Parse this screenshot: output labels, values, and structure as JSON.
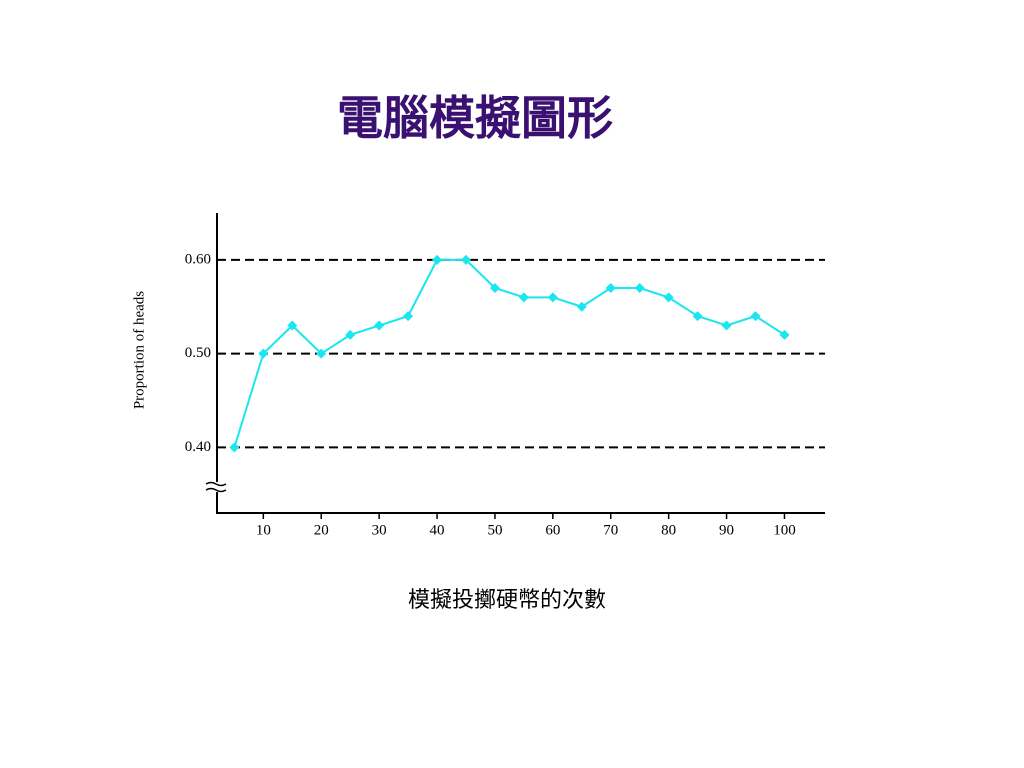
{
  "chart_data": {
    "type": "line",
    "title": "電腦模擬圖形",
    "x_label": "模擬投擲硬幣的次數",
    "y_label": "Proportion of heads",
    "x": [
      5,
      10,
      15,
      20,
      25,
      30,
      35,
      40,
      45,
      50,
      55,
      60,
      65,
      70,
      75,
      80,
      85,
      90,
      95,
      100
    ],
    "values": [
      0.4,
      0.5,
      0.53,
      0.5,
      0.52,
      0.53,
      0.54,
      0.6,
      0.6,
      0.57,
      0.56,
      0.56,
      0.55,
      0.57,
      0.57,
      0.56,
      0.54,
      0.53,
      0.54,
      0.52
    ],
    "color": "#19e6ee",
    "xlim": [
      2,
      107
    ],
    "xticks": [
      10,
      20,
      30,
      40,
      50,
      60,
      70,
      80,
      90,
      100
    ],
    "ylim": [
      0.33,
      0.65
    ],
    "yticks": [
      {
        "value": 0.4,
        "label": "0.40"
      },
      {
        "value": 0.5,
        "label": "0.50"
      },
      {
        "value": 0.6,
        "label": "0.60"
      }
    ],
    "grid": true
  }
}
